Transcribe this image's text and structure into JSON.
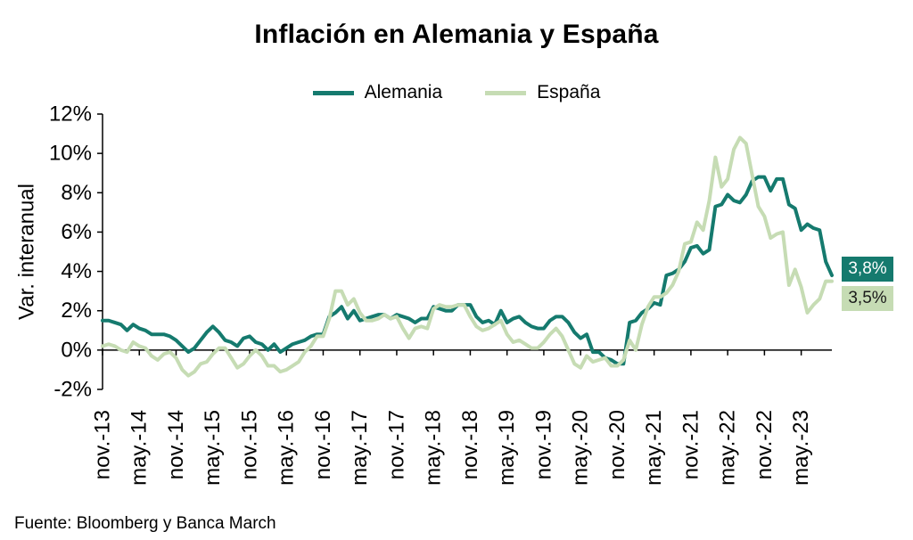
{
  "title": "Inflación en Alemania y España",
  "source": "Fuente: Bloomberg y Banca March",
  "legend": [
    {
      "label": "Alemania",
      "color": "#157a6e"
    },
    {
      "label": "España",
      "color": "#c6dcb4"
    }
  ],
  "end_labels": [
    {
      "text": "3,8%",
      "bg": "#157a6e",
      "fg": "#ffffff"
    },
    {
      "text": "3,5%",
      "bg": "#c6dcb4",
      "fg": "#1a1a1a"
    }
  ],
  "chart_data": {
    "type": "line",
    "title": "Inflación en Alemania y España",
    "xlabel": "",
    "ylabel": "Var. interanual",
    "ylim": [
      -2,
      12
    ],
    "ytick_step": 2,
    "ytick_suffix": "%",
    "grid": false,
    "legend_position": "top",
    "x_start": "nov.-13",
    "x_end": "oct.-23",
    "x_frequency": "monthly",
    "tick_every": 6,
    "x_tick_labels": [
      "nov.-13",
      "may.-14",
      "nov.-14",
      "may.-15",
      "nov.-15",
      "may.-16",
      "nov.-16",
      "may.-17",
      "nov.-17",
      "may.-18",
      "nov.-18",
      "may.-19",
      "nov.-19",
      "may.-20",
      "nov.-20",
      "may.-21",
      "nov.-21",
      "may.-22",
      "nov.-22",
      "may.-23"
    ],
    "series": [
      {
        "name": "Alemania",
        "color": "#157a6e",
        "end_value_label": "3,8%",
        "values": [
          1.5,
          1.5,
          1.4,
          1.3,
          1.0,
          1.3,
          1.1,
          1.0,
          0.8,
          0.8,
          0.8,
          0.7,
          0.5,
          0.2,
          -0.1,
          0.1,
          0.5,
          0.9,
          1.2,
          0.9,
          0.5,
          0.4,
          0.2,
          0.6,
          0.7,
          0.4,
          0.3,
          0.0,
          0.3,
          -0.1,
          0.1,
          0.3,
          0.4,
          0.5,
          0.7,
          0.8,
          0.8,
          1.7,
          1.9,
          2.2,
          1.6,
          2.0,
          1.5,
          1.6,
          1.7,
          1.8,
          1.8,
          1.6,
          1.8,
          1.7,
          1.6,
          1.4,
          1.6,
          1.6,
          2.2,
          2.1,
          2.0,
          2.0,
          2.3,
          2.3,
          2.3,
          1.7,
          1.4,
          1.5,
          1.3,
          2.0,
          1.4,
          1.6,
          1.7,
          1.4,
          1.2,
          1.1,
          1.1,
          1.5,
          1.7,
          1.7,
          1.4,
          0.9,
          0.6,
          0.8,
          -0.1,
          -0.1,
          -0.4,
          -0.5,
          -0.7,
          -0.7,
          1.4,
          1.5,
          1.9,
          2.1,
          2.4,
          2.3,
          3.8,
          3.9,
          4.1,
          4.5,
          5.2,
          5.3,
          4.9,
          5.1,
          7.3,
          7.4,
          7.9,
          7.6,
          7.5,
          7.9,
          8.6,
          8.8,
          8.8,
          8.1,
          8.7,
          8.7,
          7.4,
          7.2,
          6.1,
          6.4,
          6.2,
          6.1,
          4.5,
          3.8
        ]
      },
      {
        "name": "España",
        "color": "#c6dcb4",
        "end_value_label": "3,5%",
        "values": [
          0.2,
          0.3,
          0.2,
          0.0,
          -0.1,
          0.4,
          0.2,
          0.1,
          -0.3,
          -0.5,
          -0.2,
          -0.1,
          -0.4,
          -1.0,
          -1.3,
          -1.1,
          -0.7,
          -0.6,
          -0.2,
          0.1,
          0.1,
          -0.4,
          -0.9,
          -0.7,
          -0.3,
          0.0,
          -0.3,
          -0.8,
          -0.8,
          -1.1,
          -1.0,
          -0.8,
          -0.6,
          -0.1,
          0.2,
          0.7,
          0.7,
          1.6,
          3.0,
          3.0,
          2.3,
          2.6,
          1.9,
          1.5,
          1.5,
          1.6,
          1.8,
          1.6,
          1.7,
          1.1,
          0.6,
          1.1,
          1.2,
          1.1,
          2.1,
          2.3,
          2.2,
          2.2,
          2.3,
          2.3,
          1.7,
          1.2,
          1.0,
          1.1,
          1.3,
          1.5,
          0.8,
          0.4,
          0.5,
          0.3,
          0.1,
          0.1,
          0.4,
          0.8,
          1.1,
          0.7,
          0.0,
          -0.7,
          -0.9,
          -0.3,
          -0.6,
          -0.5,
          -0.4,
          -0.8,
          -0.8,
          -0.5,
          0.5,
          0.0,
          1.3,
          2.2,
          2.7,
          2.7,
          2.9,
          3.3,
          4.0,
          5.4,
          5.5,
          6.5,
          6.1,
          7.6,
          9.8,
          8.3,
          8.7,
          10.2,
          10.8,
          10.5,
          8.9,
          7.3,
          6.8,
          5.7,
          5.9,
          6.0,
          3.3,
          4.1,
          3.2,
          1.9,
          2.3,
          2.6,
          3.5,
          3.5
        ]
      }
    ]
  }
}
